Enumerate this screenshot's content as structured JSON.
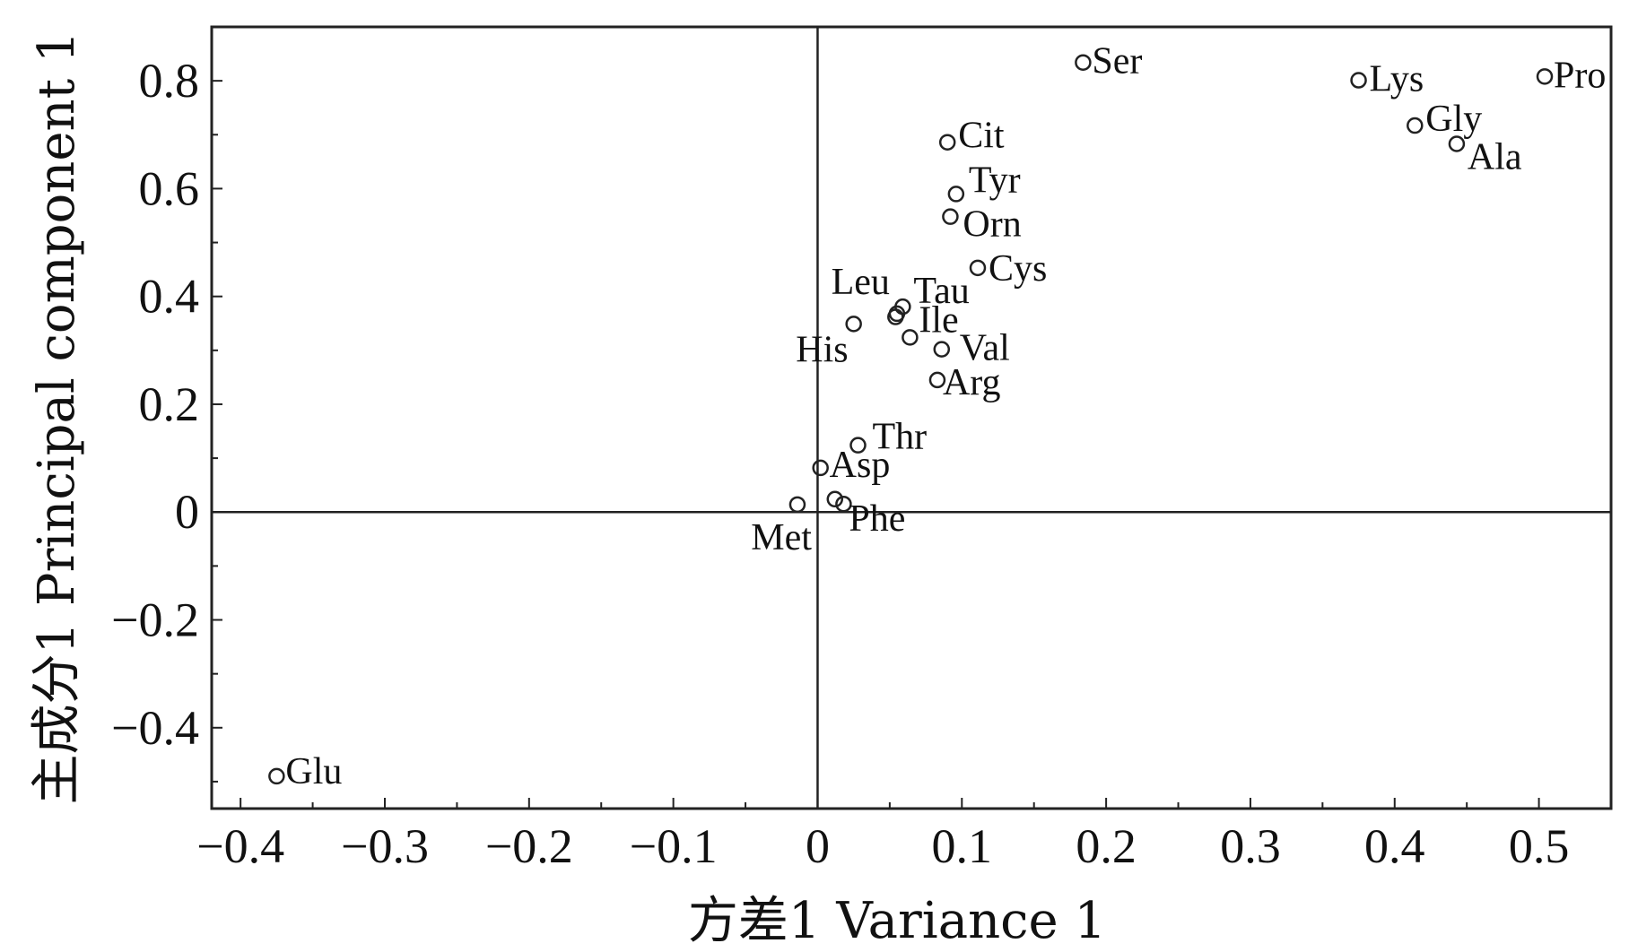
{
  "chart_data": {
    "type": "scatter",
    "title": "",
    "xlabel": "方差1  Variance 1",
    "ylabel": "主成分1 Principal component 1",
    "xlim": [
      -0.42,
      0.55
    ],
    "ylim": [
      -0.55,
      0.9
    ],
    "xticks": [
      -0.4,
      -0.3,
      -0.2,
      -0.1,
      0,
      0.1,
      0.2,
      0.3,
      0.4,
      0.5
    ],
    "xtick_labels": [
      "−0.4",
      "−0.3",
      "−0.2",
      "−0.1",
      "0",
      "0.1",
      "0.2",
      "0.3",
      "0.4",
      "0.5"
    ],
    "yticks": [
      -0.4,
      -0.2,
      0,
      0.2,
      0.4,
      0.6,
      0.8
    ],
    "ytick_labels": [
      "−0.4",
      "−0.2",
      "0",
      "0.2",
      "0.4",
      "0.6",
      "0.8"
    ],
    "grid": false,
    "legend": "none",
    "zero_lines": true,
    "points": [
      {
        "label": "Ser",
        "x": 0.184,
        "y": 0.834
      },
      {
        "label": "Lys",
        "x": 0.375,
        "y": 0.801
      },
      {
        "label": "Pro",
        "x": 0.504,
        "y": 0.808
      },
      {
        "label": "Gly",
        "x": 0.414,
        "y": 0.717
      },
      {
        "label": "Ala",
        "x": 0.443,
        "y": 0.683
      },
      {
        "label": "Cit",
        "x": 0.09,
        "y": 0.686
      },
      {
        "label": "Tyr",
        "x": 0.096,
        "y": 0.59
      },
      {
        "label": "Orn",
        "x": 0.092,
        "y": 0.548
      },
      {
        "label": "Cys",
        "x": 0.111,
        "y": 0.453
      },
      {
        "label": "Leu",
        "x": 0.055,
        "y": 0.368
      },
      {
        "label": "Tau",
        "x": 0.059,
        "y": 0.381
      },
      {
        "label": "His",
        "x": 0.025,
        "y": 0.349
      },
      {
        "label": "Ile",
        "x": 0.064,
        "y": 0.324
      },
      {
        "label": "Val",
        "x": 0.086,
        "y": 0.302
      },
      {
        "label": "Arg",
        "x": 0.083,
        "y": 0.245
      },
      {
        "label": "Thr",
        "x": 0.028,
        "y": 0.124
      },
      {
        "label": "Asp",
        "x": 0.002,
        "y": 0.082
      },
      {
        "label": "Met",
        "x": -0.014,
        "y": 0.014
      },
      {
        "label": "Phe",
        "x": 0.018,
        "y": 0.015
      },
      {
        "label": "Glu",
        "x": -0.375,
        "y": -0.49
      }
    ],
    "unlabeled_points": [
      {
        "x": 0.012,
        "y": 0.024
      },
      {
        "x": 0.054,
        "y": 0.362
      }
    ]
  }
}
